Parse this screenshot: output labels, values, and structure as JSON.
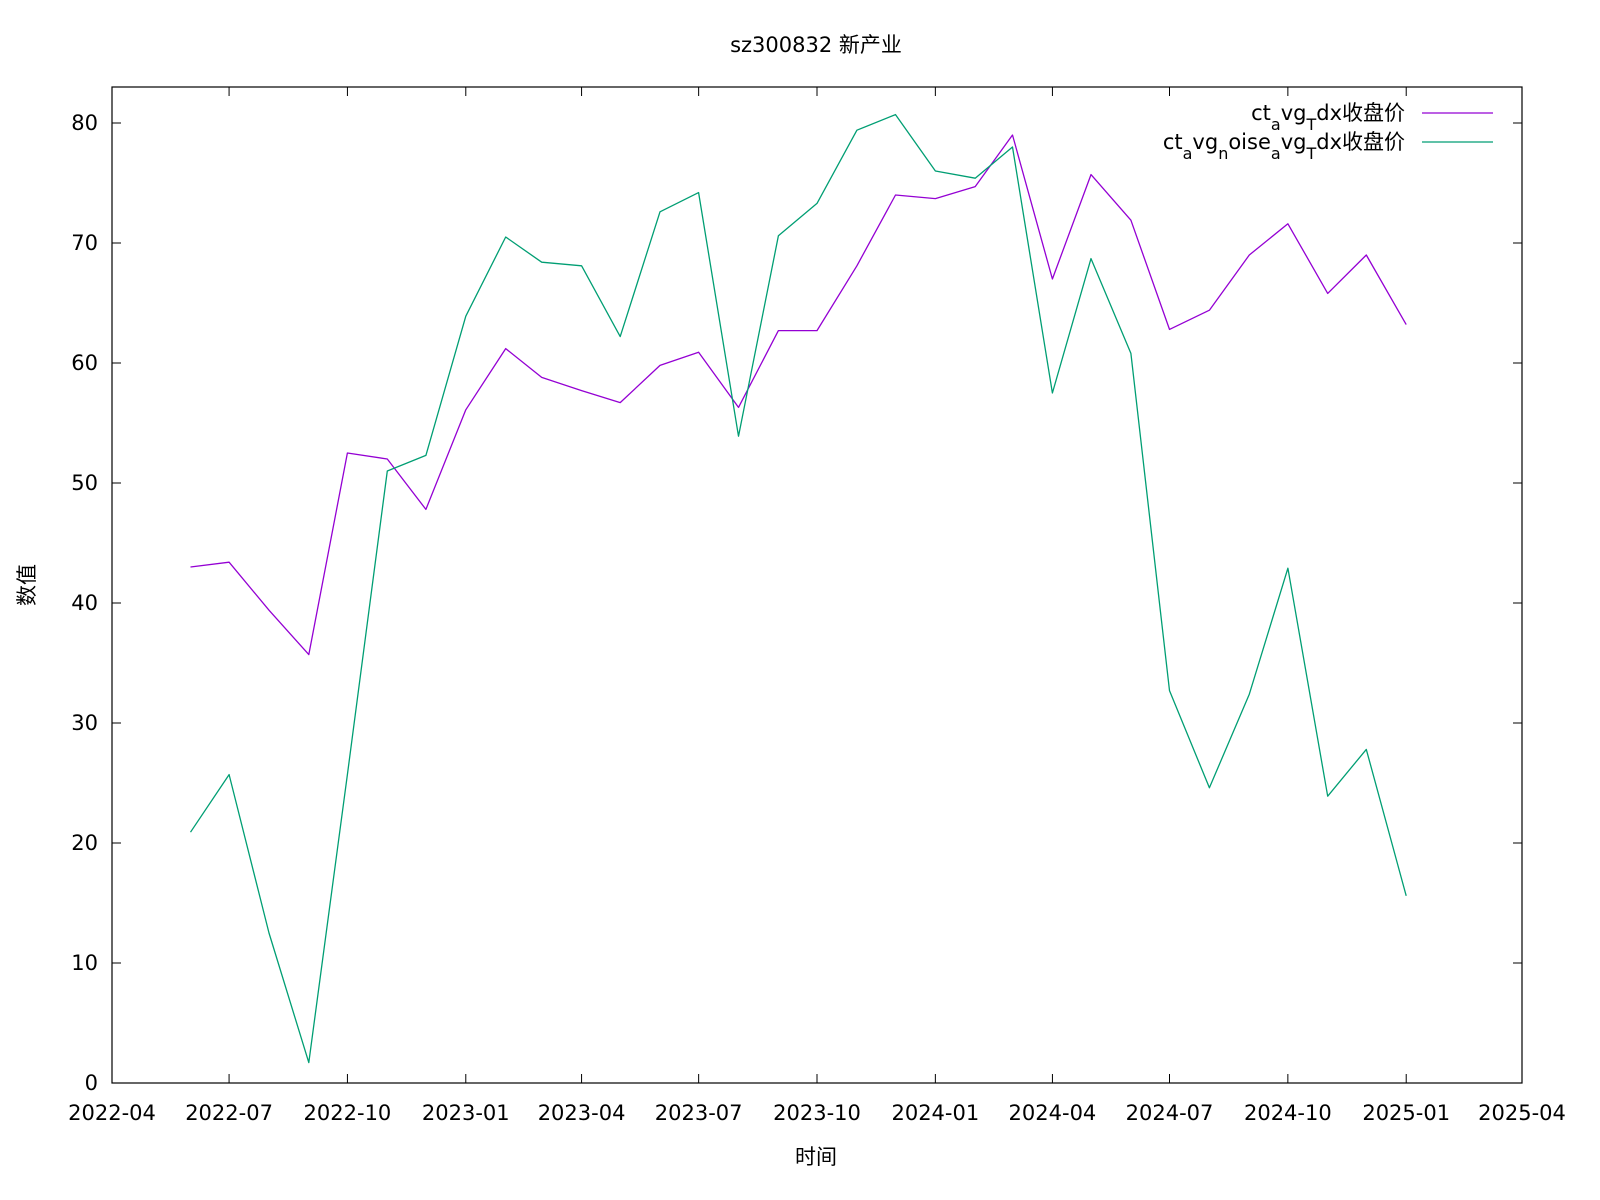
{
  "chart_data": {
    "type": "line",
    "title": "sz300832 新产业",
    "xlabel": "时间",
    "ylabel": "数值",
    "xlim": [
      "2022-04-01",
      "2025-04-01"
    ],
    "ylim": [
      0,
      83
    ],
    "x_ticks": [
      "2022-04",
      "2022-07",
      "2022-10",
      "2023-01",
      "2023-04",
      "2023-07",
      "2023-10",
      "2024-01",
      "2024-04",
      "2024-07",
      "2024-10",
      "2025-01",
      "2025-04"
    ],
    "y_ticks": [
      0,
      10,
      20,
      30,
      40,
      50,
      60,
      70,
      80
    ],
    "legend_position": "top-right",
    "x": [
      "2022-06-01",
      "2022-07-01",
      "2022-08-01",
      "2022-09-01",
      "2022-10-01",
      "2022-11-01",
      "2022-12-01",
      "2023-01-01",
      "2023-02-01",
      "2023-03-01",
      "2023-04-01",
      "2023-05-01",
      "2023-06-01",
      "2023-07-01",
      "2023-08-01",
      "2023-09-01",
      "2023-10-01",
      "2023-11-01",
      "2023-12-01",
      "2024-01-01",
      "2024-02-01",
      "2024-03-01",
      "2024-04-01",
      "2024-05-01",
      "2024-06-01",
      "2024-07-01",
      "2024-08-01",
      "2024-09-01",
      "2024-10-01",
      "2024-11-01",
      "2024-12-01",
      "2025-01-01"
    ],
    "series": [
      {
        "name_parts": [
          [
            "ct",
            ""
          ],
          [
            "a",
            "sub"
          ],
          [
            "vg",
            ""
          ],
          [
            "T",
            "sub"
          ],
          [
            "dx收盘价",
            ""
          ]
        ],
        "color": "#9400d3",
        "values": [
          43.0,
          43.4,
          39.4,
          35.7,
          52.5,
          52.0,
          47.8,
          56.1,
          61.2,
          58.8,
          57.7,
          56.7,
          59.8,
          60.9,
          56.3,
          62.7,
          62.7,
          68.1,
          74.0,
          73.7,
          74.7,
          79.0,
          67.0,
          75.7,
          71.9,
          62.8,
          64.4,
          69.0,
          71.6,
          65.8,
          69.0,
          63.2
        ]
      },
      {
        "name_parts": [
          [
            "ct",
            ""
          ],
          [
            "a",
            "sub"
          ],
          [
            "vg",
            ""
          ],
          [
            "n",
            "sub"
          ],
          [
            "oise",
            ""
          ],
          [
            "a",
            "sub"
          ],
          [
            "vg",
            ""
          ],
          [
            "T",
            "sub"
          ],
          [
            "dx收盘价",
            ""
          ]
        ],
        "color": "#009e73",
        "values": [
          20.9,
          25.7,
          12.5,
          1.7,
          25.7,
          51.0,
          52.3,
          63.9,
          70.5,
          68.4,
          68.1,
          62.2,
          72.6,
          74.2,
          53.9,
          70.6,
          73.3,
          79.4,
          80.7,
          76.0,
          75.4,
          78.0,
          57.5,
          68.7,
          60.8,
          32.7,
          24.6,
          32.4,
          42.9,
          23.9,
          27.8,
          15.6
        ]
      }
    ]
  }
}
